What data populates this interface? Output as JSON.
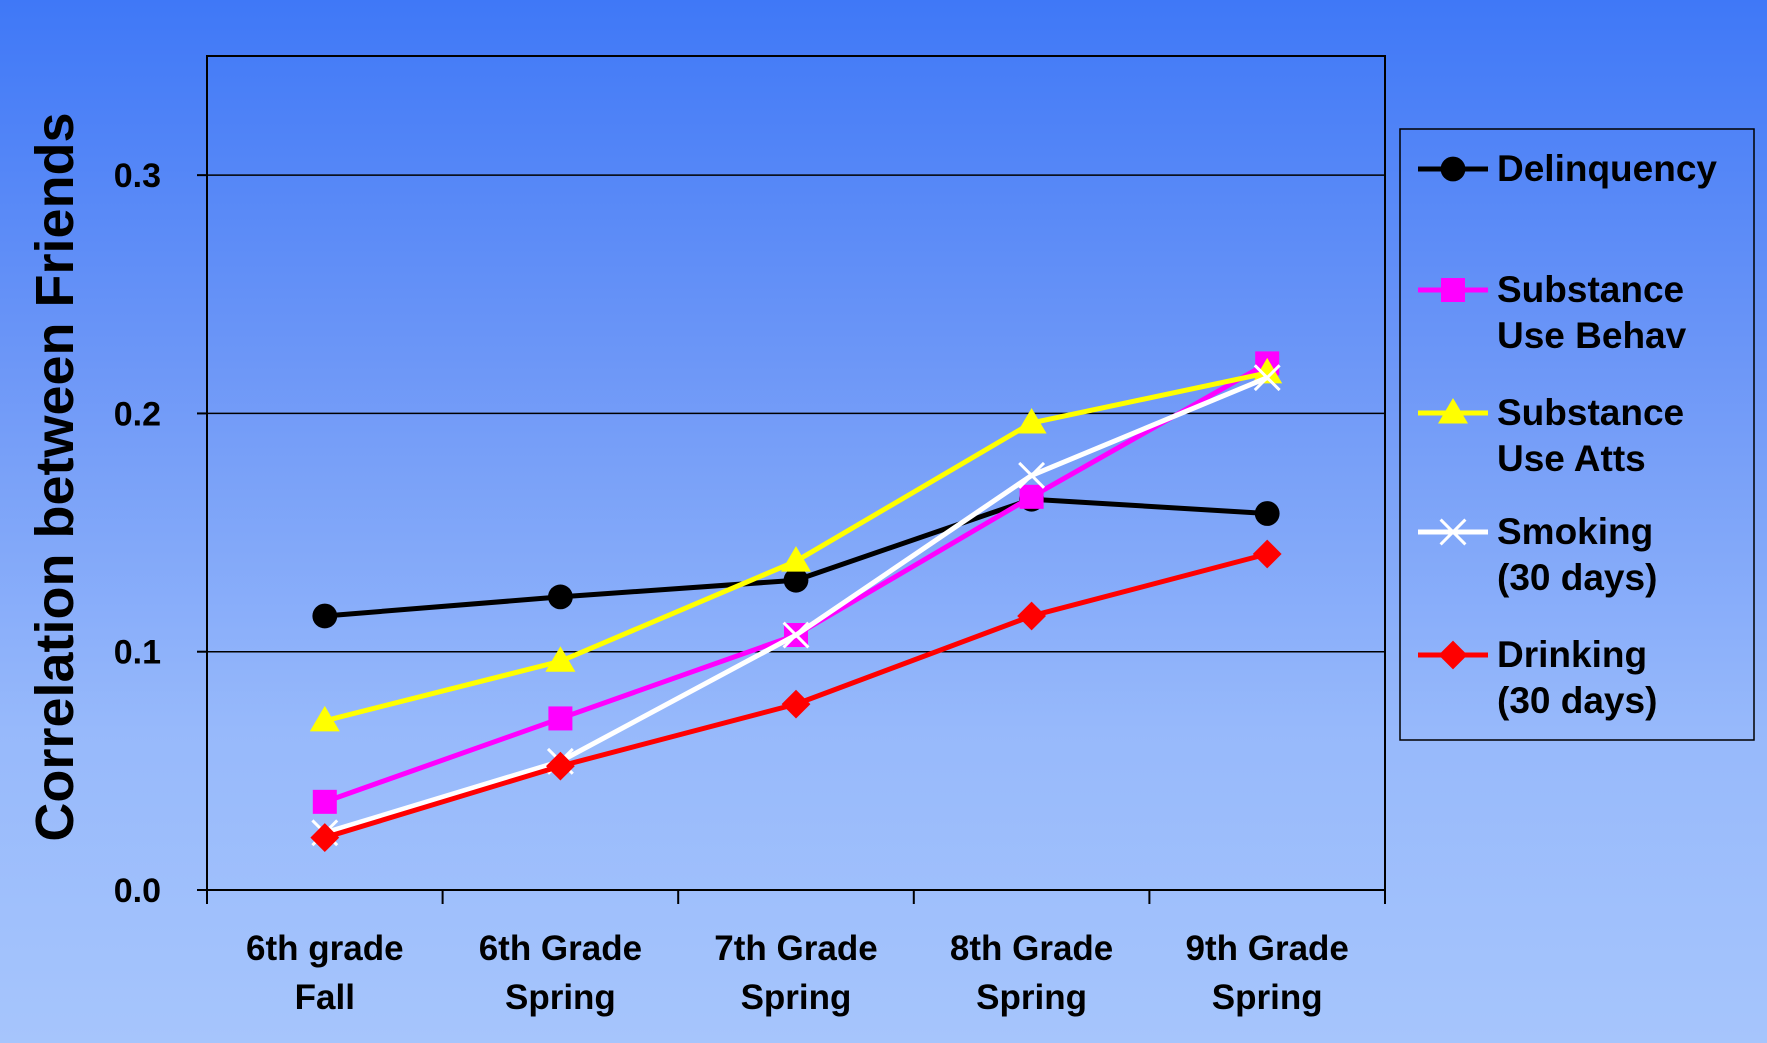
{
  "chart_data": {
    "type": "line",
    "title": "",
    "ylabel": "Correlation between Friends",
    "xlabel": "",
    "ylim": [
      0,
      0.35
    ],
    "yticks": [
      "0.0",
      "0.1",
      "0.2",
      "0.3"
    ],
    "grid": true,
    "legend_position": "right",
    "categories": [
      [
        "6th grade",
        "Fall"
      ],
      [
        "6th Grade",
        "Spring"
      ],
      [
        "7th Grade",
        "Spring"
      ],
      [
        "8th Grade",
        "Spring"
      ],
      [
        "9th Grade",
        "Spring"
      ]
    ],
    "series": [
      {
        "name": [
          "Delinquency"
        ],
        "color": "#000000",
        "marker": "circle",
        "values": [
          0.115,
          0.123,
          0.13,
          0.164,
          0.158
        ]
      },
      {
        "name": [
          "Substance",
          "Use Behav"
        ],
        "color": "#ff00ff",
        "marker": "square",
        "values": [
          0.037,
          0.072,
          0.107,
          0.165,
          0.221
        ]
      },
      {
        "name": [
          "Substance",
          "Use Atts"
        ],
        "color": "#ffff00",
        "marker": "triangle",
        "values": [
          0.071,
          0.096,
          0.138,
          0.196,
          0.217
        ]
      },
      {
        "name": [
          "Smoking",
          "(30 days)"
        ],
        "color": "#ffffff",
        "marker": "x",
        "values": [
          0.024,
          0.054,
          0.107,
          0.174,
          0.215
        ]
      },
      {
        "name": [
          "Drinking",
          "(30 days)"
        ],
        "color": "#ff0000",
        "marker": "diamond",
        "values": [
          0.022,
          0.052,
          0.078,
          0.115,
          0.141
        ]
      }
    ]
  }
}
